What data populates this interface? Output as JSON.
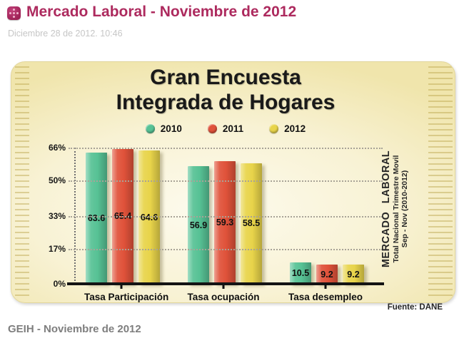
{
  "page": {
    "title": "Mercado Laboral - Noviembre de 2012",
    "title_color": "#ad2a5e",
    "date_line": "Diciembre 28 de 2012. 10:46",
    "footer": "GEIH - Noviembre de 2012"
  },
  "chart_data": {
    "type": "bar",
    "title": "Gran Encuesta Integrada de Hogares",
    "title_line1": "Gran Encuesta",
    "title_line2": "Integrada de Hogares",
    "categories": [
      "Tasa Participación",
      "Tasa ocupación",
      "Tasa desempleo"
    ],
    "series": [
      {
        "name": "2010",
        "color": "#57c295",
        "values": [
          63.6,
          56.9,
          10.5
        ]
      },
      {
        "name": "2011",
        "color": "#e0523a",
        "values": [
          65.4,
          59.3,
          9.2
        ]
      },
      {
        "name": "2012",
        "color": "#e8d44a",
        "values": [
          64.6,
          58.5,
          9.2
        ]
      }
    ],
    "ylim": [
      0,
      66
    ],
    "y_ticks": [
      {
        "label": "66%",
        "value": 66
      },
      {
        "label": "50%",
        "value": 50
      },
      {
        "label": "33%",
        "value": 33
      },
      {
        "label": "17%",
        "value": 17
      },
      {
        "label": "0%",
        "value": 0
      }
    ],
    "grid": "dotted-horizontal",
    "legend_position": "top",
    "side_label": {
      "line1": "MERCADO LABORAL",
      "line2": "Total Nacional Trimestre Movil",
      "line3": "Sep - Nov (2010-2012)"
    },
    "source": "Fuente: DANE",
    "card_background": "#f8f2d4"
  }
}
